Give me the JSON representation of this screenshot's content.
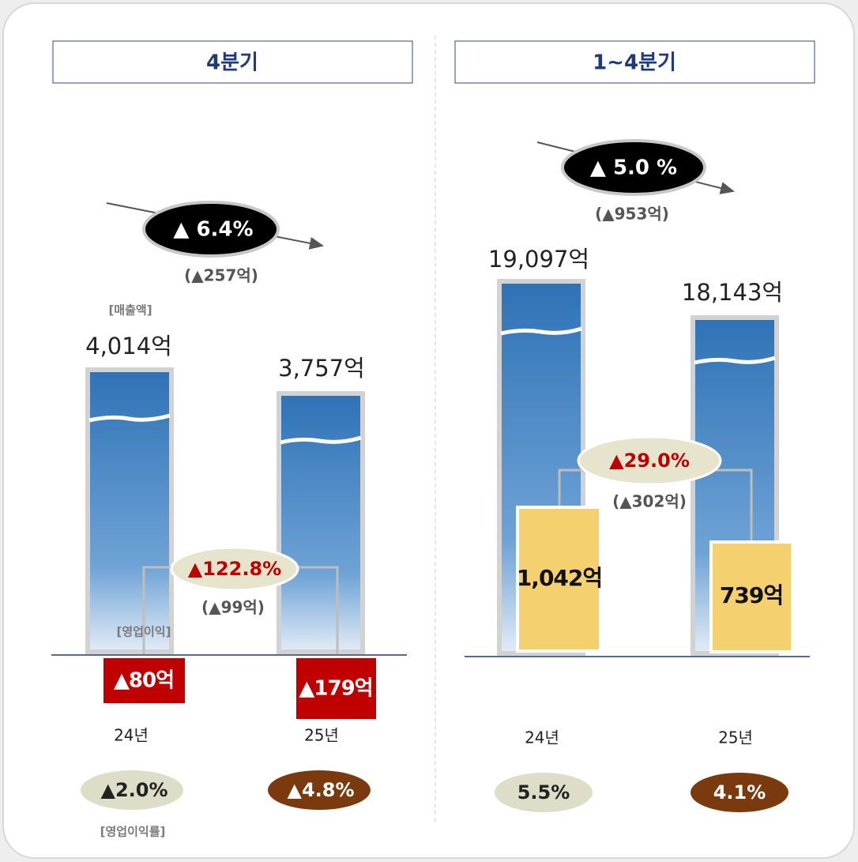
{
  "panels": [
    {
      "title": "4분기",
      "sales_label": "[매출액]",
      "op_label": "[영업이익]",
      "margin_label": "[영업이익률]",
      "sales_change": {
        "rate": "▲ 6.4%",
        "amount": "(▲257억)"
      },
      "op_change": {
        "rate": "▲122.8%",
        "amount": "(▲99억)"
      },
      "years": [
        {
          "year": "24년",
          "sales": "4,014억",
          "op": "▲80억",
          "margin": "▲2.0%"
        },
        {
          "year": "25년",
          "sales": "3,757억",
          "op": "▲179억",
          "margin": "▲4.8%"
        }
      ]
    },
    {
      "title": "1~4분기",
      "sales_change": {
        "rate": "▲ 5.0 %",
        "amount": "(▲953억)"
      },
      "op_change": {
        "rate": "▲29.0%",
        "amount": "(▲302억)"
      },
      "years": [
        {
          "year": "24년",
          "sales": "19,097억",
          "op": "1,042억",
          "margin": "5.5%"
        },
        {
          "year": "25년",
          "sales": "18,143억",
          "op": "739억",
          "margin": "4.1%"
        }
      ]
    }
  ]
}
